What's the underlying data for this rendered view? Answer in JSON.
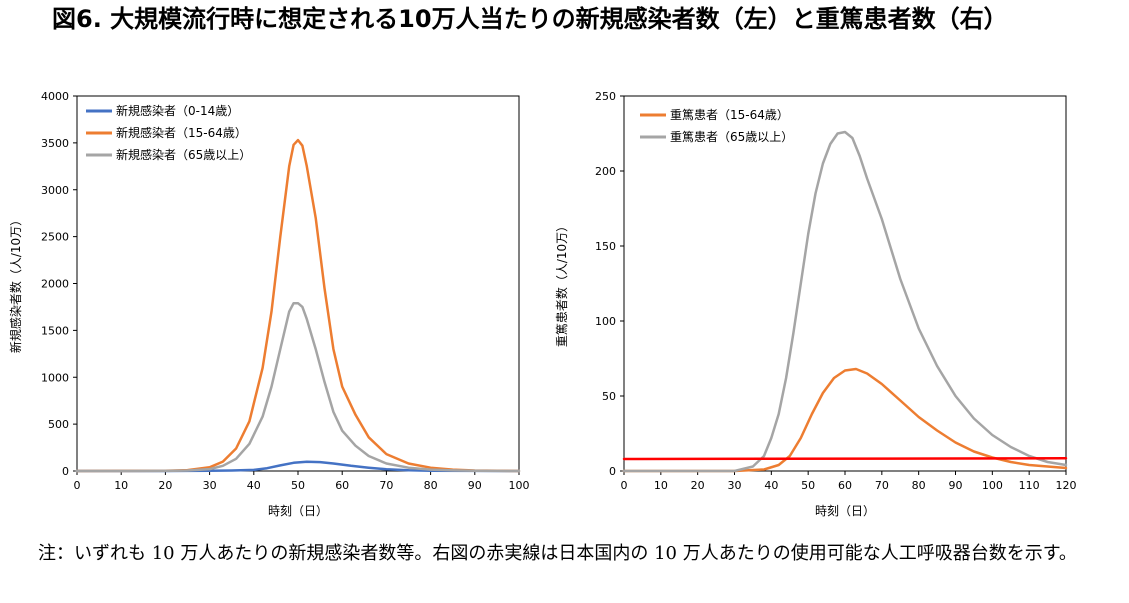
{
  "title": "図6. 大規模流行時に想定される10万人当たりの新規感染者数（左）と重篤患者数（右）",
  "note": "注：いずれも 10 万人あたりの新規感染者数等。右図の赤実線は日本国内の 10 万人あたりの使用可能な人工呼吸器台数を示す。",
  "chart_data": [
    {
      "type": "line",
      "xlabel": "時刻（日）",
      "ylabel": "新規感染者数（人/10万）",
      "xlim": [
        0,
        100
      ],
      "ylim": [
        0,
        4000
      ],
      "xticks": [
        0,
        10,
        20,
        30,
        40,
        50,
        60,
        70,
        80,
        90,
        100
      ],
      "yticks": [
        0,
        500,
        1000,
        1500,
        2000,
        2500,
        3000,
        3500,
        4000
      ],
      "legend": "top-left",
      "series": [
        {
          "name": "新規感染者（0-14歳）",
          "color": "#4472C4",
          "x": [
            0,
            20,
            30,
            35,
            40,
            43,
            46,
            49,
            52,
            55,
            58,
            62,
            66,
            70,
            75,
            80,
            90,
            100
          ],
          "y": [
            0,
            0,
            2,
            5,
            12,
            30,
            60,
            88,
            98,
            95,
            80,
            55,
            35,
            18,
            8,
            3,
            1,
            0
          ]
        },
        {
          "name": "新規感染者（15-64歳）",
          "color": "#ED7D31",
          "x": [
            0,
            20,
            25,
            30,
            33,
            36,
            39,
            42,
            44,
            46,
            48,
            49,
            50,
            51,
            52,
            54,
            56,
            58,
            60,
            63,
            66,
            70,
            75,
            80,
            85,
            90,
            100
          ],
          "y": [
            0,
            2,
            10,
            40,
            100,
            240,
            530,
            1100,
            1700,
            2500,
            3250,
            3480,
            3530,
            3470,
            3250,
            2700,
            1950,
            1300,
            900,
            600,
            360,
            180,
            80,
            35,
            15,
            5,
            0
          ]
        },
        {
          "name": "新規感染者（65歳以上）",
          "color": "#A5A5A5",
          "x": [
            0,
            20,
            25,
            30,
            33,
            36,
            39,
            42,
            44,
            46,
            48,
            49,
            50,
            51,
            52,
            54,
            56,
            58,
            60,
            63,
            66,
            70,
            75,
            80,
            85,
            90,
            100
          ],
          "y": [
            0,
            1,
            5,
            20,
            55,
            130,
            290,
            580,
            900,
            1300,
            1700,
            1790,
            1790,
            1750,
            1620,
            1300,
            950,
            630,
            430,
            270,
            160,
            80,
            35,
            15,
            6,
            2,
            0
          ]
        }
      ]
    },
    {
      "type": "line",
      "xlabel": "時刻（日）",
      "ylabel": "重篤患者数（人/10万）",
      "xlim": [
        0,
        120
      ],
      "ylim": [
        0,
        250
      ],
      "xticks": [
        0,
        10,
        20,
        30,
        40,
        50,
        60,
        70,
        80,
        90,
        100,
        110,
        120
      ],
      "yticks": [
        0,
        50,
        100,
        150,
        200,
        250
      ],
      "legend": "top-left",
      "series": [
        {
          "name": "重篤患者（15-64歳）",
          "color": "#ED7D31",
          "x": [
            0,
            30,
            38,
            42,
            45,
            48,
            51,
            54,
            57,
            60,
            63,
            66,
            70,
            75,
            80,
            85,
            90,
            95,
            100,
            105,
            110,
            115,
            120
          ],
          "y": [
            0,
            0,
            1,
            4,
            10,
            22,
            38,
            52,
            62,
            67,
            68,
            65,
            58,
            47,
            36,
            27,
            19,
            13,
            9,
            6,
            4,
            3,
            2
          ]
        },
        {
          "name": "重篤患者（65歳以上）",
          "color": "#A5A5A5",
          "x": [
            0,
            30,
            35,
            38,
            40,
            42,
            44,
            46,
            48,
            50,
            52,
            54,
            56,
            58,
            60,
            62,
            64,
            66,
            70,
            75,
            80,
            85,
            90,
            95,
            100,
            105,
            110,
            115,
            120
          ],
          "y": [
            0,
            0,
            3,
            10,
            22,
            38,
            62,
            92,
            125,
            158,
            185,
            205,
            218,
            225,
            226,
            222,
            210,
            195,
            168,
            128,
            95,
            70,
            50,
            35,
            24,
            16,
            10,
            6,
            4
          ]
        },
        {
          "color": "#FF0000",
          "x": [
            0,
            120
          ],
          "y": [
            8,
            8.5
          ]
        }
      ]
    }
  ]
}
